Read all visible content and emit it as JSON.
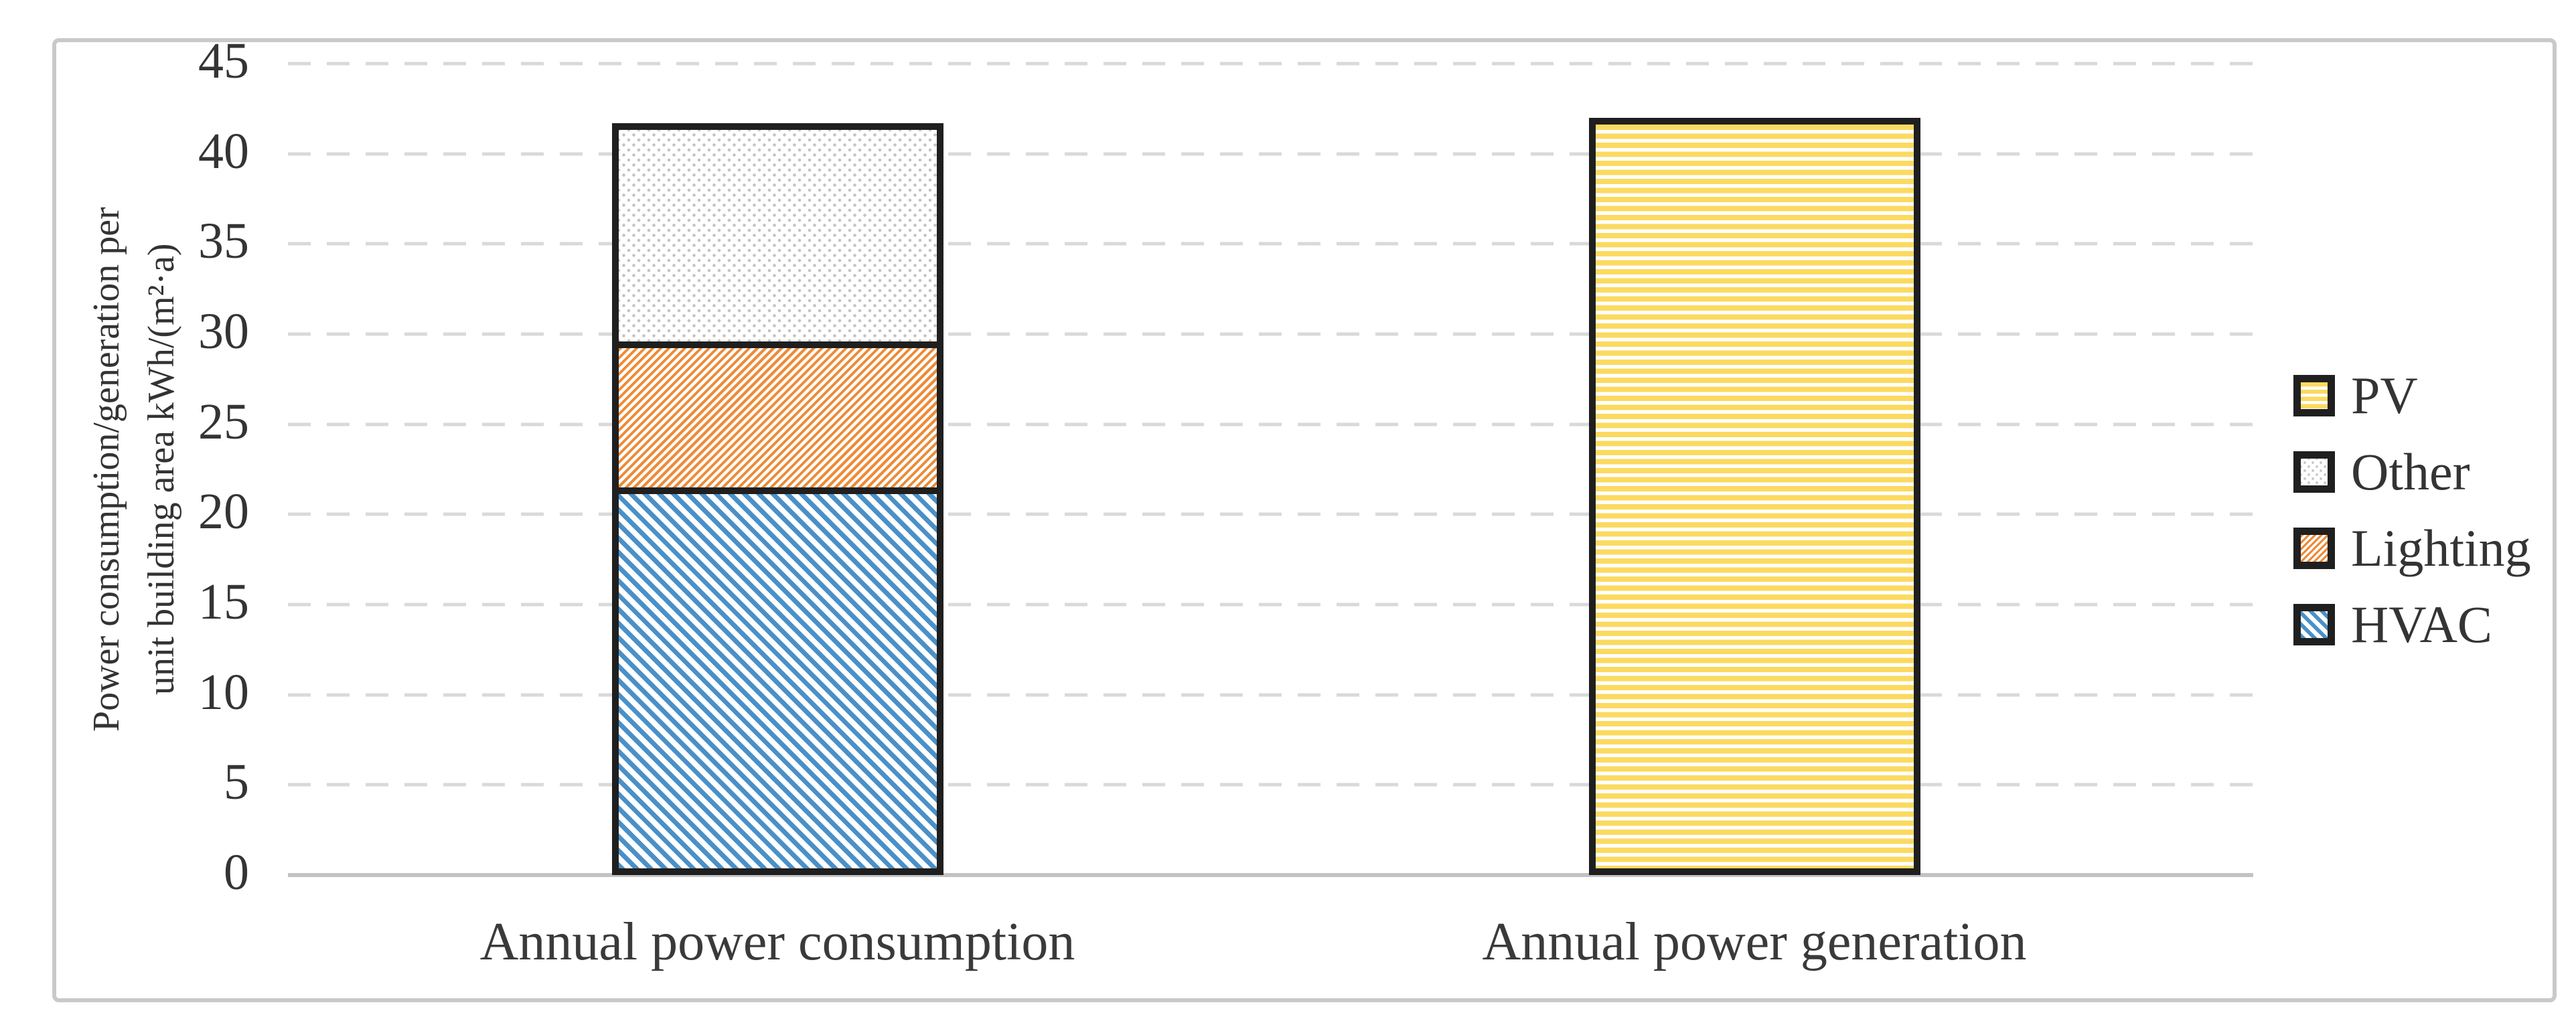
{
  "chart_data": {
    "type": "bar",
    "stacked": true,
    "categories": [
      "Annual power consumption",
      "Annual power generation"
    ],
    "series": [
      {
        "name": "HVAC",
        "pattern": "diagonal-up",
        "color": "#4a90c8",
        "values": [
          21.3,
          0
        ]
      },
      {
        "name": "Lighting",
        "pattern": "diagonal-down",
        "color": "#ed8b37",
        "values": [
          8.2,
          0
        ]
      },
      {
        "name": "Other",
        "pattern": "dots",
        "color": "#c4c4c4",
        "values": [
          12.2,
          0
        ]
      },
      {
        "name": "PV",
        "pattern": "horizontal-stripes",
        "color": "#fbda60",
        "values": [
          0,
          42.0
        ]
      }
    ],
    "bar_totals": [
      41.7,
      42.0
    ],
    "ylabel_lines": [
      "Power consumption/generation per",
      "unit building area kWh/(m²·a)"
    ],
    "ylim": [
      0,
      45
    ],
    "ytick_step": 5,
    "yticks": [
      "0",
      "5",
      "10",
      "15",
      "20",
      "25",
      "30",
      "35",
      "40",
      "45"
    ],
    "grid": "dashed-horizontal",
    "legend": {
      "position": "right",
      "items": [
        "PV",
        "Other",
        "Lighting",
        "HVAC"
      ]
    },
    "colors": {
      "bar_border": "#1f1f1f",
      "gridline": "#d9d9d9",
      "axis_line": "#c3c3c3",
      "text": "#343434",
      "frame_border": "#c9c9c9",
      "background": "#ffffff"
    }
  }
}
